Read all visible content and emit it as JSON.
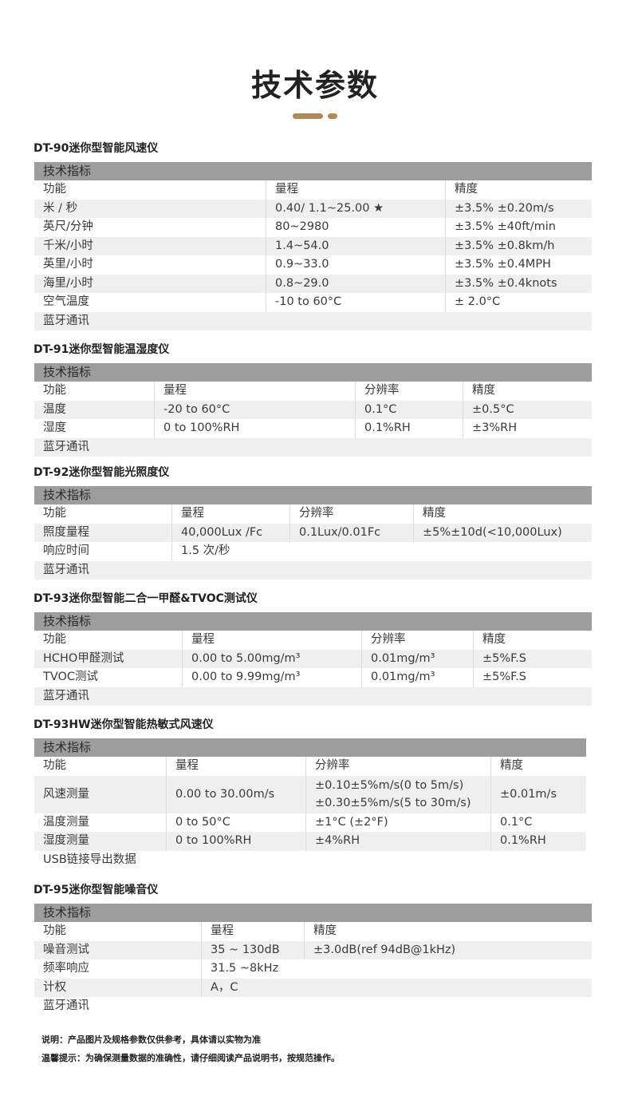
{
  "page_title": "技术参数",
  "accent_color": "#b08a57",
  "sections": [
    {
      "title": "DT-90迷你型智能风速仪",
      "header": "技术指标",
      "columns": [
        "功能",
        "量程",
        "精度"
      ],
      "rows": [
        [
          "米 / 秒",
          "0.40/ 1.1~25.00 ★",
          "±3.5% ±0.20m/s"
        ],
        [
          "英尺/分钟",
          "80~2980",
          "±3.5% ±40ft/min"
        ],
        [
          "千米/小时",
          "1.4~54.0",
          "±3.5% ±0.8km/h"
        ],
        [
          "英里/小时",
          "0.9~33.0",
          "±3.5% ±0.4MPH"
        ],
        [
          "海里/小时",
          "0.8~29.0",
          "±3.5% ±0.4knots"
        ],
        [
          "空气温度",
          "-10 to 60°C",
          "± 2.0°C"
        ]
      ],
      "footer_row": "蓝牙通讯"
    },
    {
      "title": "DT-91迷你型智能温湿度仪",
      "header": "技术指标",
      "columns": [
        "功能",
        "量程",
        "分辨率",
        "精度"
      ],
      "rows": [
        [
          "温度",
          "-20 to 60°C",
          "0.1°C",
          "±0.5°C"
        ],
        [
          "湿度",
          "0 to 100%RH",
          "0.1%RH",
          "±3%RH"
        ]
      ],
      "footer_row": "蓝牙通讯"
    },
    {
      "title": "DT-92迷你型智能光照度仪",
      "header": "技术指标",
      "columns": [
        "功能",
        "量程",
        "分辨率",
        "精度"
      ],
      "rows": [
        [
          "照度量程",
          "40,000Lux /Fc",
          "0.1Lux/0.01Fc",
          "±5%±10d(<10,000Lux)"
        ],
        [
          "响应时间",
          "1.5 次/秒"
        ]
      ],
      "footer_row": "蓝牙通讯"
    },
    {
      "title": "DT-93迷你型智能二合一甲醛&TVOC测试仪",
      "header": "技术指标",
      "columns": [
        "功能",
        "量程",
        "分辨率",
        "精度"
      ],
      "rows": [
        [
          "HCHO甲醛测试",
          "0.00 to 5.00mg/m³",
          "0.01mg/m³",
          "±5%F.S"
        ],
        [
          "TVOC测试",
          "0.00 to 9.99mg/m³",
          "0.01mg/m³",
          "±5%F.S"
        ]
      ],
      "footer_row": "蓝牙通讯"
    },
    {
      "title": "DT-93HW迷你型智能热敏式风速仪",
      "header": "技术指标",
      "columns": [
        "功能",
        "量程",
        "分辨率",
        "精度"
      ],
      "rows": [
        [
          "风速测量",
          "0.00 to 30.00m/s",
          "±0.10±5%m/s(0 to 5m/s)\n±0.30±5%m/s(5 to 30m/s)",
          "±0.01m/s"
        ],
        [
          "温度测量",
          "0 to 50°C",
          "±1°C (±2°F)",
          "0.1°C"
        ],
        [
          "湿度测量",
          "0 to 100%RH",
          "±4%RH",
          "0.1%RH"
        ]
      ],
      "footer_row": "USB链接导出数据"
    },
    {
      "title": "DT-95迷你型智能噪音仪",
      "header": "技术指标",
      "columns": [
        "功能",
        "量程",
        "精度"
      ],
      "rows": [
        [
          "噪音测试",
          "35 ~ 130dB",
          " ±3.0dB(ref 94dB@1kHz)"
        ],
        [
          "频率响应",
          "31.5 ~8kHz"
        ],
        [
          "计权",
          "A，C"
        ]
      ],
      "footer_row": "蓝牙通讯"
    }
  ],
  "notes": [
    "说明：产品图片及规格参数仅供参考，具体请以实物为准",
    "温馨提示：为确保测量数据的准确性，请仔细阅读产品说明书，按规范操作。"
  ]
}
